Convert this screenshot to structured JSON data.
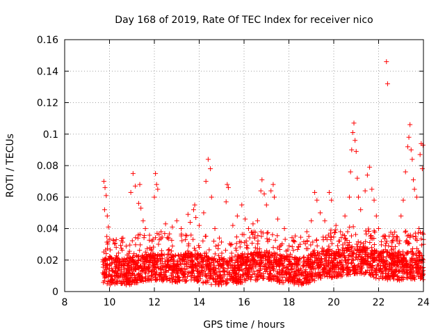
{
  "chart_data": {
    "type": "scatter",
    "title": "Day 168 of 2019, Rate Of TEC Index for receiver nico",
    "xlabel": "GPS time / hours",
    "ylabel": "ROTI / TECUs",
    "xlim": [
      8,
      24
    ],
    "ylim": [
      0,
      0.16
    ],
    "xticks": [
      8,
      10,
      12,
      14,
      16,
      18,
      20,
      22,
      24
    ],
    "xtick_labels": [
      "8",
      "10",
      "12",
      "14",
      "16",
      "18",
      "20",
      "22",
      "24"
    ],
    "yticks": [
      0,
      0.02,
      0.04,
      0.06,
      0.08,
      0.1,
      0.12,
      0.14,
      0.16
    ],
    "ytick_labels": [
      "0",
      "0.02",
      "0.04",
      "0.06",
      "0.08",
      "0.1",
      "0.12",
      "0.14",
      "0.16"
    ],
    "grid": true,
    "marker": "+",
    "marker_color": "#ff0000",
    "series": [
      {
        "name": "ROTI",
        "points": [
          [
            9.75,
            0.07
          ],
          [
            9.8,
            0.066
          ],
          [
            9.85,
            0.061
          ],
          [
            9.78,
            0.052
          ],
          [
            9.9,
            0.048
          ],
          [
            9.95,
            0.041
          ],
          [
            9.88,
            0.035
          ],
          [
            10.3,
            0.028
          ],
          [
            10.6,
            0.034
          ],
          [
            10.95,
            0.063
          ],
          [
            11.05,
            0.075
          ],
          [
            11.15,
            0.067
          ],
          [
            11.3,
            0.056
          ],
          [
            11.4,
            0.053
          ],
          [
            11.35,
            0.068
          ],
          [
            11.5,
            0.045
          ],
          [
            11.6,
            0.04
          ],
          [
            11.9,
            0.032
          ],
          [
            12.0,
            0.06
          ],
          [
            12.05,
            0.075
          ],
          [
            12.1,
            0.068
          ],
          [
            12.15,
            0.065
          ],
          [
            12.3,
            0.038
          ],
          [
            12.5,
            0.043
          ],
          [
            12.8,
            0.041
          ],
          [
            13.0,
            0.045
          ],
          [
            13.2,
            0.04
          ],
          [
            13.5,
            0.049
          ],
          [
            13.6,
            0.044
          ],
          [
            13.75,
            0.052
          ],
          [
            13.8,
            0.055
          ],
          [
            13.85,
            0.047
          ],
          [
            14.0,
            0.042
          ],
          [
            14.2,
            0.05
          ],
          [
            14.3,
            0.07
          ],
          [
            14.4,
            0.084
          ],
          [
            14.5,
            0.078
          ],
          [
            14.55,
            0.06
          ],
          [
            14.7,
            0.04
          ],
          [
            14.9,
            0.034
          ],
          [
            15.25,
            0.068
          ],
          [
            15.3,
            0.066
          ],
          [
            15.2,
            0.057
          ],
          [
            15.5,
            0.042
          ],
          [
            15.7,
            0.048
          ],
          [
            15.9,
            0.055
          ],
          [
            16.05,
            0.046
          ],
          [
            16.2,
            0.04
          ],
          [
            16.4,
            0.043
          ],
          [
            16.6,
            0.045
          ],
          [
            16.75,
            0.064
          ],
          [
            16.8,
            0.071
          ],
          [
            16.9,
            0.062
          ],
          [
            17.0,
            0.055
          ],
          [
            17.2,
            0.064
          ],
          [
            17.3,
            0.068
          ],
          [
            17.35,
            0.06
          ],
          [
            17.5,
            0.046
          ],
          [
            17.8,
            0.04
          ],
          [
            18.2,
            0.032
          ],
          [
            18.5,
            0.03
          ],
          [
            18.8,
            0.038
          ],
          [
            19.0,
            0.045
          ],
          [
            19.15,
            0.063
          ],
          [
            19.25,
            0.058
          ],
          [
            19.4,
            0.05
          ],
          [
            19.6,
            0.045
          ],
          [
            19.8,
            0.063
          ],
          [
            19.9,
            0.058
          ],
          [
            20.1,
            0.042
          ],
          [
            20.3,
            0.038
          ],
          [
            20.5,
            0.048
          ],
          [
            20.7,
            0.06
          ],
          [
            20.75,
            0.076
          ],
          [
            20.8,
            0.09
          ],
          [
            20.85,
            0.101
          ],
          [
            20.9,
            0.107
          ],
          [
            20.95,
            0.096
          ],
          [
            21.0,
            0.089
          ],
          [
            21.05,
            0.072
          ],
          [
            21.1,
            0.06
          ],
          [
            21.2,
            0.052
          ],
          [
            21.4,
            0.064
          ],
          [
            21.5,
            0.074
          ],
          [
            21.6,
            0.079
          ],
          [
            21.7,
            0.065
          ],
          [
            21.8,
            0.058
          ],
          [
            21.9,
            0.048
          ],
          [
            22.0,
            0.04
          ],
          [
            22.2,
            0.035
          ],
          [
            22.35,
            0.146
          ],
          [
            22.4,
            0.132
          ],
          [
            22.6,
            0.032
          ],
          [
            22.8,
            0.035
          ],
          [
            23.0,
            0.048
          ],
          [
            23.1,
            0.058
          ],
          [
            23.2,
            0.076
          ],
          [
            23.3,
            0.092
          ],
          [
            23.35,
            0.098
          ],
          [
            23.4,
            0.106
          ],
          [
            23.45,
            0.09
          ],
          [
            23.5,
            0.084
          ],
          [
            23.55,
            0.071
          ],
          [
            23.6,
            0.065
          ],
          [
            23.7,
            0.06
          ],
          [
            23.8,
            0.04
          ],
          [
            23.85,
            0.087
          ],
          [
            23.9,
            0.094
          ],
          [
            23.95,
            0.078
          ],
          [
            23.98,
            0.093
          ],
          [
            24.0,
            0.03
          ]
        ],
        "baseline_band": [
          [
            9.7,
            0.014
          ],
          [
            10.0,
            0.013
          ],
          [
            10.5,
            0.012
          ],
          [
            11.0,
            0.013
          ],
          [
            11.5,
            0.015
          ],
          [
            12.0,
            0.016
          ],
          [
            12.5,
            0.015
          ],
          [
            13.0,
            0.014
          ],
          [
            13.5,
            0.016
          ],
          [
            14.0,
            0.015
          ],
          [
            14.5,
            0.013
          ],
          [
            15.0,
            0.012
          ],
          [
            15.5,
            0.013
          ],
          [
            16.0,
            0.015
          ],
          [
            16.5,
            0.016
          ],
          [
            17.0,
            0.017
          ],
          [
            17.5,
            0.015
          ],
          [
            18.0,
            0.014
          ],
          [
            18.5,
            0.013
          ],
          [
            19.0,
            0.015
          ],
          [
            19.5,
            0.017
          ],
          [
            20.0,
            0.018
          ],
          [
            20.5,
            0.019
          ],
          [
            21.0,
            0.02
          ],
          [
            21.5,
            0.019
          ],
          [
            22.0,
            0.017
          ],
          [
            22.5,
            0.016
          ],
          [
            23.0,
            0.016
          ],
          [
            23.5,
            0.017
          ],
          [
            24.0,
            0.016
          ]
        ]
      }
    ]
  }
}
